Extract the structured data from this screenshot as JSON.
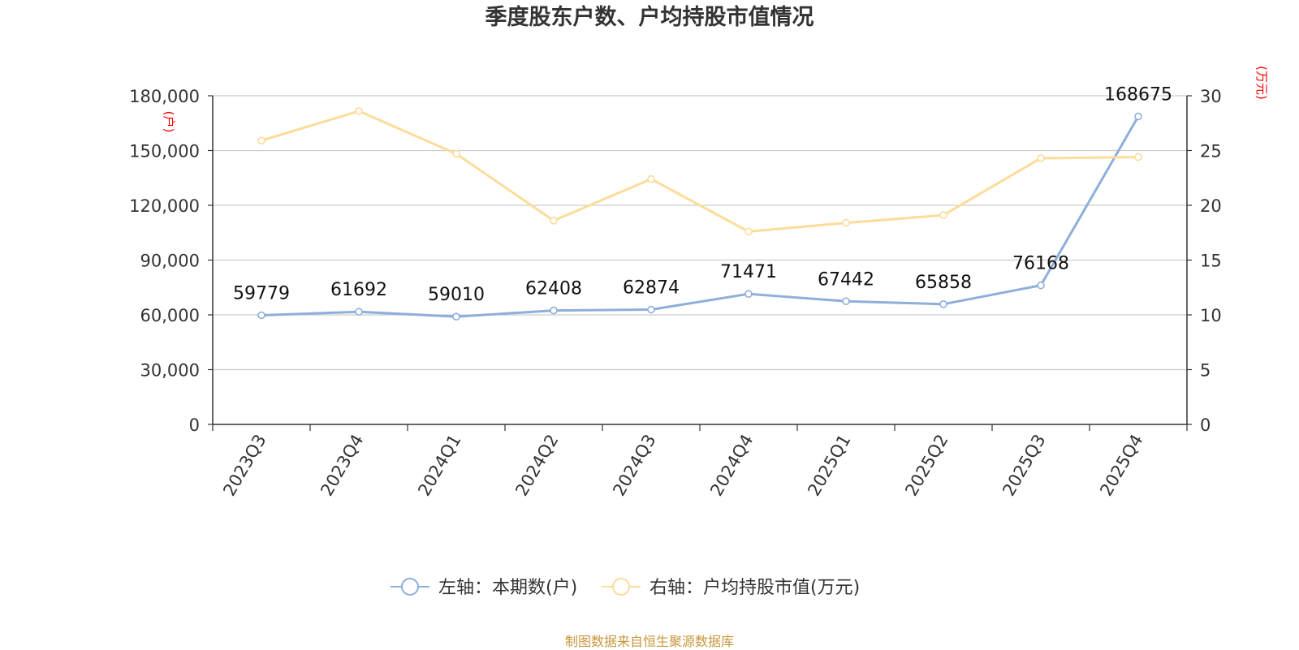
{
  "title": "季度股东户数、户均持股市值情况",
  "source_note": "制图数据来自恒生聚源数据库",
  "colors": {
    "left_series": "#8eaedb",
    "right_series": "#fddc9a",
    "axis": "#333333",
    "grid": "#cccccc",
    "unit_label": "#ff0000",
    "source_note": "#c8963e"
  },
  "chart_data": {
    "type": "line",
    "title": "季度股东户数、户均持股市值情况",
    "categories": [
      "2023Q3",
      "2023Q4",
      "2024Q1",
      "2024Q2",
      "2024Q3",
      "2024Q4",
      "2025Q1",
      "2025Q2",
      "2025Q3",
      "2025Q4"
    ],
    "y_left": {
      "unit_label": "(户)",
      "ylim": [
        0,
        180000
      ],
      "ticks": [
        0,
        30000,
        60000,
        90000,
        120000,
        150000,
        180000
      ],
      "tick_labels": [
        "0",
        "30,000",
        "60,000",
        "90,000",
        "120,000",
        "150,000",
        "180,000"
      ]
    },
    "y_right": {
      "unit_label": "(万元)",
      "ylim": [
        0,
        30
      ],
      "ticks": [
        0,
        5,
        10,
        15,
        20,
        25,
        30
      ],
      "tick_labels": [
        "0",
        "5",
        "10",
        "15",
        "20",
        "25",
        "30"
      ]
    },
    "series": [
      {
        "name": "左轴：本期数(户)",
        "axis": "left",
        "values": [
          59779,
          61692,
          59010,
          62408,
          62874,
          71471,
          67442,
          65858,
          76168,
          168675
        ],
        "data_labels": [
          "59779",
          "61692",
          "59010",
          "62408",
          "62874",
          "71471",
          "67442",
          "65858",
          "76168",
          "168675"
        ]
      },
      {
        "name": "右轴：户均持股市值(万元)",
        "axis": "right",
        "values": [
          25.9,
          28.6,
          24.7,
          18.6,
          22.4,
          17.6,
          18.4,
          19.1,
          24.3,
          24.4
        ]
      }
    ],
    "grid": true,
    "legend_position": "bottom-center"
  }
}
